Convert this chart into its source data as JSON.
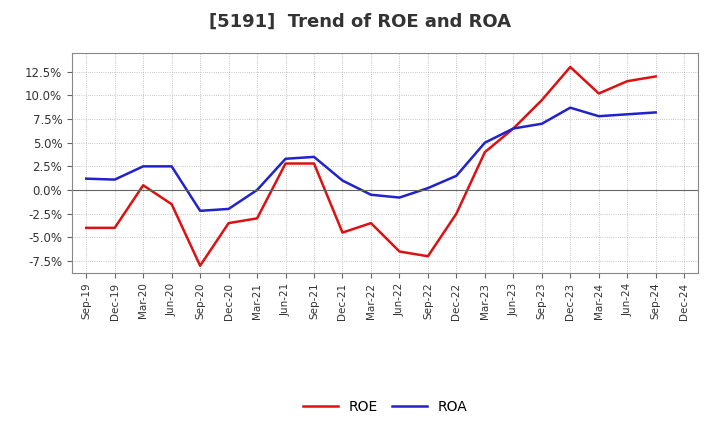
{
  "title": "[5191]  Trend of ROE and ROA",
  "labels": [
    "Sep-19",
    "Dec-19",
    "Mar-20",
    "Jun-20",
    "Sep-20",
    "Dec-20",
    "Mar-21",
    "Jun-21",
    "Sep-21",
    "Dec-21",
    "Mar-22",
    "Jun-22",
    "Sep-22",
    "Dec-22",
    "Mar-23",
    "Jun-23",
    "Sep-23",
    "Dec-23",
    "Mar-24",
    "Jun-24",
    "Sep-24",
    "Dec-24"
  ],
  "ROE": [
    -4.0,
    -4.0,
    0.5,
    -1.5,
    -8.0,
    -3.5,
    -3.0,
    2.8,
    2.8,
    -4.5,
    -3.5,
    -6.5,
    -7.0,
    -2.5,
    4.0,
    6.5,
    9.5,
    13.0,
    10.2,
    11.5,
    12.0,
    null
  ],
  "ROA": [
    1.2,
    1.1,
    2.5,
    2.5,
    -2.2,
    -2.0,
    0.0,
    3.3,
    3.5,
    1.0,
    -0.5,
    -0.8,
    0.2,
    1.5,
    5.0,
    6.5,
    7.0,
    8.7,
    7.8,
    8.0,
    8.2,
    null
  ],
  "roe_color": "#dd1111",
  "roa_color": "#2222cc",
  "background_color": "#ffffff",
  "plot_bg_color": "#ffffff",
  "grid_color": "#aaaaaa",
  "ylim": [
    -8.75,
    14.5
  ],
  "yticks": [
    -7.5,
    -5.0,
    -2.5,
    0.0,
    2.5,
    5.0,
    7.5,
    10.0,
    12.5
  ],
  "title_fontsize": 13,
  "legend_labels": [
    "ROE",
    "ROA"
  ],
  "line_width": 1.8
}
